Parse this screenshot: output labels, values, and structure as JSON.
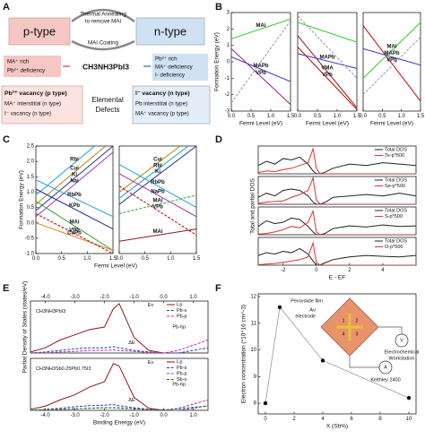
{
  "panel_labels": [
    "A",
    "B",
    "C",
    "D",
    "E",
    "F"
  ],
  "diagram": {
    "p_type": "p-type",
    "n_type": "n-type",
    "annealing": [
      "Thermal Annealing",
      "to remove MAI"
    ],
    "coating": "MAI Coating",
    "formula": "CH3NH3PbI3",
    "p_rich": [
      "MA⁺ rich",
      "Pb²⁺ deficiency"
    ],
    "n_rich": [
      "Pb²⁺ rich",
      "MA⁺ deficiency",
      "I- deficiency"
    ],
    "p_defects": [
      "Pb²⁺ vacancy (p type)",
      "MA⁺ interstitial (n type)",
      "I⁻ vacancy (n type)"
    ],
    "center": [
      "Elemental",
      "Defects"
    ],
    "n_defects": [
      "I⁻ vacancy (n type)",
      "Pb interstitial (n type)",
      "MA⁺ vacancy (p type)"
    ]
  },
  "inset": {
    "film": "Perovskite film",
    "electrode": [
      "Au",
      "electrode"
    ],
    "workstation": [
      "Electrochemical",
      "Workstation"
    ],
    "meter": "Keithley 2400",
    "ammeter": "A",
    "voltmeter": "V",
    "pins": [
      "1",
      "2",
      "3",
      "4"
    ]
  },
  "chart_data": [
    {
      "type": "line",
      "ylabel": "Formation Energy (eV)",
      "xlabel": "Fermi Level (eV)",
      "legend": "inline",
      "x": [
        0,
        1.5
      ],
      "xlim": [
        0,
        1.5
      ],
      "ylim": [
        -3,
        3
      ],
      "xticks": [
        {
          "value": 0,
          "label": "0.0"
        },
        0.5,
        {
          "value": 1,
          "label": "1.0"
        },
        1.5
      ],
      "yticks": [
        -3,
        -2,
        -1,
        0,
        1,
        2,
        3
      ],
      "series": [
        {
          "name": "MAi",
          "color": "#33cc33",
          "values": [
            1.4,
            2.6
          ]
        },
        {
          "name": "MAPb",
          "color": "#3333cc",
          "values": [
            0.3,
            -1.2
          ]
        },
        {
          "name": "VPb",
          "color": "#8b1a8b",
          "values": [
            0.8,
            -2.6
          ]
        },
        {
          "color": "#999999",
          "dash": "dashed",
          "values": [
            -2.5,
            2.5
          ]
        }
      ]
    },
    {
      "type": "line",
      "xlabel": "Fermi Level (eV)",
      "legend": "inline",
      "x": [
        0,
        1.5
      ],
      "xlim": [
        0,
        1.5
      ],
      "ylim": [
        -3,
        3
      ],
      "xticks": [
        {
          "value": 0,
          "label": "0.0"
        },
        0.5,
        {
          "value": 1,
          "label": "1.0"
        },
        1.5
      ],
      "series": [
        {
          "name": "VMA",
          "color": "#8b1a1a",
          "values": [
            1.6,
            -2.8
          ]
        },
        {
          "name": "MAPb",
          "color": "#3333cc",
          "values": [
            0.5,
            -0.4
          ]
        },
        {
          "name": "VPb",
          "color": "#cc0000",
          "values": [
            0.9,
            -2.9
          ]
        },
        {
          "color": "#33cc33",
          "values": [
            2.4,
            1.2
          ]
        },
        {
          "color": "#999999",
          "dash": "dashed",
          "values": [
            2.8,
            -1
          ]
        }
      ]
    },
    {
      "type": "line",
      "xlabel": "Fermi Level (eV)",
      "legend": "inline",
      "x": [
        0,
        1.5
      ],
      "xlim": [
        0,
        1.5
      ],
      "ylim": [
        -3,
        3
      ],
      "xticks": [
        {
          "value": 0,
          "label": "0.0"
        },
        0.5,
        {
          "value": 1,
          "label": "1.0"
        },
        1.5
      ],
      "series": [
        {
          "name": "VPb",
          "color": "#cc0000",
          "values": [
            2.2,
            -2.4
          ]
        },
        {
          "name": "MAi",
          "color": "#33cc33",
          "values": [
            -1,
            2.4
          ]
        },
        {
          "name": "MAPb",
          "color": "#3333cc",
          "values": [
            0.8,
            -0.2
          ]
        },
        {
          "color": "#999999",
          "dash": "dashed",
          "values": [
            -2,
            1.5
          ]
        }
      ]
    },
    {
      "type": "line",
      "ylabel": "Formation Energy (eV)",
      "xlabel": "Fermi Level (eV)",
      "legend": "inline",
      "x": [
        0,
        1.5
      ],
      "xlim": [
        0,
        1.5
      ],
      "ylim": [
        -1,
        2.5
      ],
      "xticks": [
        {
          "value": 0,
          "label": "0.0"
        },
        0.5,
        {
          "value": 1,
          "label": "1.0"
        },
        1.5
      ],
      "yticks": [
        {
          "value": -1,
          "label": "-1.0"
        },
        -0.5,
        {
          "value": 0,
          "label": "0.0"
        },
        0.5,
        {
          "value": 1,
          "label": "1.0"
        },
        1.5,
        {
          "value": 2,
          "label": "2.0"
        },
        2.5
      ],
      "series": [
        {
          "name": "Cui",
          "color": "#b8860b",
          "values": [
            0.6,
            2.7
          ]
        },
        {
          "name": "Rbi",
          "color": "#1fa0e0",
          "values": [
            0.9,
            3
          ]
        },
        {
          "name": "Nai",
          "color": "#a030c0",
          "values": [
            0.2,
            2.3
          ]
        },
        {
          "name": "Ki",
          "color": "#2030a0",
          "values": [
            0.4,
            2.5
          ]
        },
        {
          "name": "MAi",
          "color": "#30a030",
          "values": [
            0.7,
            -0.9
          ]
        },
        {
          "name": "CuPb",
          "color": "#e08020",
          "values": [
            0,
            -0.9
          ]
        },
        {
          "name": "RbPb",
          "color": "#1fa0e0",
          "values": [
            1.4,
            0.2
          ]
        },
        {
          "name": "KPb",
          "color": "#2030a0",
          "values": [
            1.1,
            -0.2
          ]
        },
        {
          "name": "VPb",
          "color": "#c00000",
          "dash": "dashed",
          "values": [
            0.3,
            -1
          ]
        }
      ]
    },
    {
      "type": "line",
      "legend": "inline",
      "x": [
        0,
        1.5
      ],
      "xlim": [
        0,
        1.5
      ],
      "ylim": [
        -1,
        2.5
      ],
      "xticks": [
        {
          "value": 0,
          "label": "0.0"
        },
        0.5,
        {
          "value": 1,
          "label": "1.0"
        },
        1.5
      ],
      "series": [
        {
          "name": "Cui",
          "color": "#b8860b",
          "values": [
            1,
            2.9
          ]
        },
        {
          "name": "Rbi",
          "color": "#1fa0e0",
          "values": [
            0.8,
            2.7
          ]
        },
        {
          "name": "Ki",
          "color": "#2030a0",
          "values": [
            0.6,
            2.5
          ]
        },
        {
          "name": "NaPb",
          "color": "#a030c0",
          "values": [
            1.6,
            0.2
          ]
        },
        {
          "name": "RbPb",
          "color": "#1fa0e0",
          "values": [
            1.9,
            0.5
          ]
        },
        {
          "name": "MAi",
          "color": "#30a030",
          "dash": "dashed",
          "values": [
            0.3,
            0.9
          ]
        },
        {
          "name": "MAi",
          "color": "#8b1a1a",
          "values": [
            -0.6,
            -0.2
          ]
        },
        {
          "name": "VPb",
          "color": "#c00000",
          "dash": "dashed",
          "values": [
            1.2,
            -0.4
          ]
        }
      ]
    },
    {
      "type": "line",
      "ylabel": "Total and partial DOS",
      "legend": "upper right",
      "x": [
        -3.5,
        -3,
        -2.5,
        -2,
        -1.5,
        -1,
        -0.5,
        -0.2,
        0,
        0.2,
        0.5,
        1,
        2,
        3,
        4,
        5,
        6
      ],
      "xlim": [
        -3.5,
        6
      ],
      "ylim": [
        0,
        1
      ],
      "series": [
        {
          "name": "Total DOS",
          "color": "#222222",
          "values": [
            0.3,
            0.45,
            0.35,
            0.55,
            0.5,
            0.6,
            0.35,
            0.1,
            0,
            0,
            0.05,
            0.2,
            0.35,
            0.3,
            0.4,
            0.35,
            0.3
          ]
        },
        {
          "name": "Te-p*500",
          "color": "#e03030",
          "values": [
            0.05,
            0.1,
            0.08,
            0.15,
            0.2,
            0.3,
            0.4,
            0.9,
            0.2,
            0.02,
            0,
            0,
            0,
            0,
            0,
            0,
            0
          ]
        }
      ]
    },
    {
      "type": "line",
      "legend": "upper right",
      "x": [
        -3.5,
        -3,
        -2.5,
        -2,
        -1.5,
        -1,
        -0.5,
        -0.2,
        0,
        0.2,
        0.5,
        1,
        2,
        3,
        4,
        5,
        6
      ],
      "xlim": [
        -3.5,
        6
      ],
      "ylim": [
        0,
        1
      ],
      "series": [
        {
          "name": "Total DOS",
          "color": "#222222",
          "values": [
            0.25,
            0.4,
            0.3,
            0.5,
            0.55,
            0.5,
            0.3,
            0.08,
            0,
            0,
            0.06,
            0.25,
            0.3,
            0.35,
            0.3,
            0.4,
            0.3
          ]
        },
        {
          "name": "Se-p*500",
          "color": "#e03030",
          "values": [
            0.03,
            0.08,
            0.1,
            0.12,
            0.25,
            0.35,
            0.5,
            0.95,
            0.15,
            0.02,
            0,
            0,
            0,
            0,
            0,
            0,
            0
          ]
        }
      ]
    },
    {
      "type": "line",
      "legend": "upper right",
      "x": [
        -3.5,
        -3,
        -2.5,
        -2,
        -1.5,
        -1,
        -0.5,
        -0.2,
        0,
        0.2,
        0.5,
        1,
        2,
        3,
        4,
        5,
        6
      ],
      "xlim": [
        -3.5,
        6
      ],
      "ylim": [
        0,
        1
      ],
      "series": [
        {
          "name": "Total DOS",
          "color": "#222222",
          "values": [
            0.3,
            0.5,
            0.4,
            0.45,
            0.6,
            0.55,
            0.3,
            0.1,
            0,
            0,
            0.04,
            0.22,
            0.32,
            0.28,
            0.35,
            0.3,
            0.32
          ]
        },
        {
          "name": "S-p*500",
          "color": "#e03030",
          "values": [
            0.02,
            0.05,
            0.1,
            0.18,
            0.3,
            0.25,
            0.45,
            0.85,
            0.1,
            0.01,
            0,
            0,
            0,
            0,
            0,
            0,
            0
          ]
        }
      ]
    },
    {
      "type": "line",
      "xlabel": "E - EF",
      "legend": "upper right",
      "x": [
        -3.5,
        -3,
        -2.5,
        -2,
        -1.5,
        -1,
        -0.5,
        -0.2,
        0,
        0.2,
        0.5,
        1,
        2,
        3,
        4,
        5,
        6
      ],
      "xlim": [
        -3.5,
        6
      ],
      "ylim": [
        0,
        1
      ],
      "xticks": [
        -2,
        0,
        2,
        4
      ],
      "series": [
        {
          "name": "Total DOS",
          "color": "#222222",
          "values": [
            0.35,
            0.45,
            0.4,
            0.5,
            0.45,
            0.6,
            0.4,
            0.15,
            0,
            0,
            0.08,
            0.2,
            0.3,
            0.35,
            0.32,
            0.3,
            0.35
          ]
        },
        {
          "name": "O-p*500",
          "color": "#e03030",
          "values": [
            0.02,
            0.04,
            0.06,
            0.1,
            0.15,
            0.2,
            0.3,
            0.8,
            0.1,
            0.01,
            0,
            0,
            0,
            0,
            0,
            0,
            0
          ]
        }
      ]
    },
    {
      "type": "line",
      "ylabel": "Partial Density of States (states/eV)",
      "legend": "upper right",
      "x": [
        -4.5,
        -4,
        -3.5,
        -3,
        -2.5,
        -2,
        -1.7,
        -1.5,
        -1,
        -0.5,
        0,
        0.5,
        1,
        1.5
      ],
      "xlim": [
        -4.5,
        1.5
      ],
      "ylim": [
        0,
        1
      ],
      "xticks": [
        {
          "value": -4,
          "label": "-4.0"
        },
        {
          "value": -3,
          "label": "-3.0"
        },
        {
          "value": -2,
          "label": "-2.0"
        },
        {
          "value": -1,
          "label": "-1.0"
        },
        {
          "value": 0,
          "label": "0.0"
        },
        {
          "value": 1,
          "label": "1.0"
        }
      ],
      "annotations": [
        "CH3NH3PbI3",
        "ΔE",
        "Ev",
        "Pb-6p"
      ],
      "series": [
        {
          "name": "I-p",
          "color": "#8b1a1a",
          "values": [
            0.02,
            0.1,
            0.25,
            0.35,
            0.45,
            0.5,
            0.85,
            0.95,
            0.3,
            0.05,
            0,
            0,
            0,
            0
          ]
        },
        {
          "name": "Pb-s",
          "color": "#2040c0",
          "dash": "dashed",
          "values": [
            0,
            0.02,
            0.05,
            0.08,
            0.1,
            0.1,
            0.12,
            0.1,
            0.05,
            0.02,
            0,
            0,
            0.05,
            0.1
          ]
        },
        {
          "name": "Pb-p",
          "color": "#c020c0",
          "dash": "dashed",
          "values": [
            0,
            0,
            0.02,
            0.03,
            0.05,
            0.05,
            0.06,
            0.05,
            0.03,
            0.01,
            0,
            0.05,
            0.15,
            0.25
          ]
        }
      ]
    },
    {
      "type": "line",
      "xlabel": "Binding Energy (eV)",
      "legend": "upper right",
      "x": [
        -4.5,
        -4,
        -3.5,
        -3,
        -2.5,
        -2,
        -1.7,
        -1.5,
        -1,
        -0.5,
        0,
        0.5,
        1,
        1.5
      ],
      "xlim": [
        -4.5,
        1.5
      ],
      "ylim": [
        0,
        1
      ],
      "xticks": [
        {
          "value": -4,
          "label": "-4.0"
        },
        {
          "value": -3,
          "label": "-3.0"
        },
        {
          "value": -2,
          "label": "-2.0"
        },
        {
          "value": -1,
          "label": "-1.0"
        },
        {
          "value": 0,
          "label": "0.0"
        },
        {
          "value": 1,
          "label": "1.0"
        }
      ],
      "annotations": [
        "CH3NH3Sb0.25Pb0.75I3",
        "ΔE",
        "Ev",
        "Pb-6p"
      ],
      "series": [
        {
          "name": "I-p",
          "color": "#8b1a1a",
          "values": [
            0.02,
            0.08,
            0.2,
            0.3,
            0.45,
            0.55,
            0.9,
            0.85,
            0.25,
            0.04,
            0,
            0,
            0,
            0
          ]
        },
        {
          "name": "Pb-s",
          "color": "#2040c0",
          "dash": "dashed",
          "values": [
            0,
            0.02,
            0.04,
            0.07,
            0.09,
            0.1,
            0.11,
            0.09,
            0.05,
            0.02,
            0,
            0,
            0.04,
            0.09
          ]
        },
        {
          "name": "Pb-p",
          "color": "#c020c0",
          "dash": "dashed",
          "values": [
            0,
            0,
            0.02,
            0.03,
            0.04,
            0.05,
            0.05,
            0.05,
            0.03,
            0.01,
            0,
            0.04,
            0.12,
            0.2
          ]
        },
        {
          "name": "Sb-s",
          "color": "#208020",
          "dash": "dashed",
          "values": [
            0,
            0.01,
            0.02,
            0.03,
            0.04,
            0.05,
            0.05,
            0.04,
            0.03,
            0.02,
            0.01,
            0.03,
            0.06,
            0.08
          ]
        }
      ]
    },
    {
      "type": "line",
      "ylabel": "Electron concentration (*10^16 cm^-3)",
      "xlabel": "X (Sb%)",
      "markers": true,
      "marker_color": "#111111",
      "x": [
        0,
        1,
        4,
        10
      ],
      "xlim": [
        -0.5,
        10.5
      ],
      "ylim": [
        7.6,
        12.1
      ],
      "xticks": [
        0,
        2,
        4,
        6,
        8,
        10
      ],
      "yticks": [
        8,
        9,
        10,
        11,
        12
      ],
      "series": [
        {
          "color": "#999999",
          "values": [
            8,
            11.6,
            9.6,
            8.2
          ]
        }
      ]
    }
  ]
}
